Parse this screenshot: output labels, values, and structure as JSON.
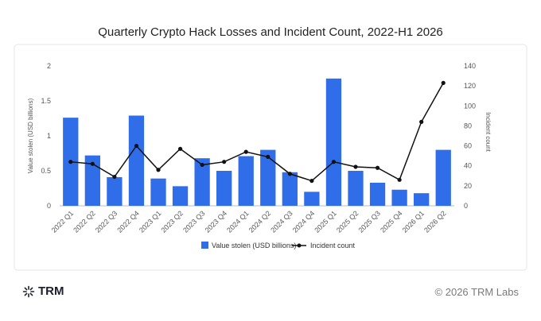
{
  "chart_data": {
    "type": "bar",
    "title": "Quarterly Crypto Hack Losses and Incident Count, 2022-H1 2026",
    "categories": [
      "2022 Q1",
      "2022 Q2",
      "2022 Q3",
      "2022 Q4",
      "2023 Q1",
      "2023 Q2",
      "2023 Q3",
      "2023 Q4",
      "2024 Q1",
      "2024 Q2",
      "2024 Q3",
      "2024 Q4",
      "2025 Q1",
      "2025 Q2",
      "2025 Q3",
      "2025 Q4",
      "2026 Q1",
      "2026 Q2"
    ],
    "series": [
      {
        "name": "Value stolen (USD billions)",
        "type": "bar",
        "axis": "left",
        "color": "#2f6ee8",
        "values": [
          1.26,
          0.72,
          0.41,
          1.29,
          0.39,
          0.28,
          0.68,
          0.5,
          0.71,
          0.8,
          0.48,
          0.2,
          1.82,
          0.5,
          0.33,
          0.23,
          0.18,
          0.8
        ]
      },
      {
        "name": "Incident count",
        "type": "line",
        "axis": "right",
        "color": "#111111",
        "values": [
          44,
          42,
          29,
          60,
          36,
          57,
          41,
          44,
          54,
          49,
          32,
          25,
          44,
          39,
          38,
          26,
          84,
          123
        ]
      }
    ],
    "ylabel": "Value stolen (USD billions)",
    "ylabel_right": "Incident count",
    "ylim": [
      0,
      2
    ],
    "yticks": [
      "0",
      "0.5",
      "1",
      "1.5",
      "2"
    ],
    "ylim_right": [
      0,
      140
    ],
    "yticks_right": [
      "0",
      "20",
      "40",
      "60",
      "80",
      "100",
      "120",
      "140"
    ],
    "legend_position": "bottom",
    "grid": false
  },
  "footer": {
    "logo_text": "TRM",
    "copyright": "© 2026 TRM Labs"
  }
}
